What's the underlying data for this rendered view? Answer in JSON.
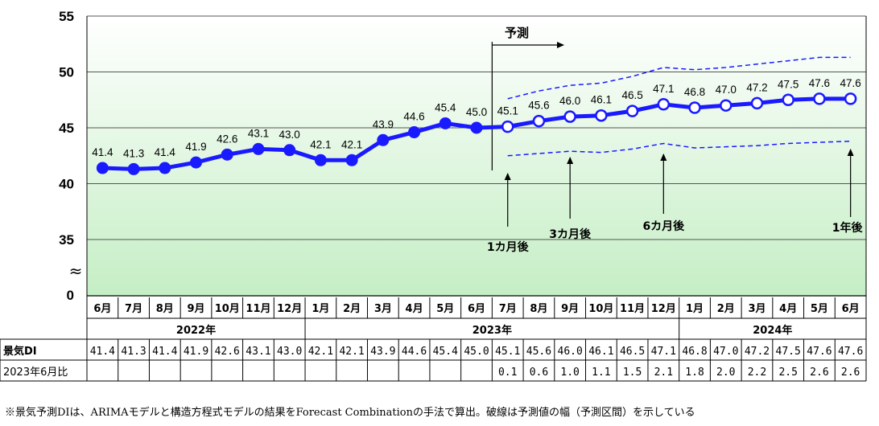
{
  "chart_data": {
    "type": "line",
    "title": "",
    "xlabel": "",
    "ylabel": "",
    "ylim": [
      35,
      55
    ],
    "y_ticks": [
      "35",
      "40",
      "45",
      "50",
      "55"
    ],
    "y_zero_label": "0",
    "axis_break_symbol": "≈",
    "grid": true,
    "categories": [
      "6月",
      "7月",
      "8月",
      "9月",
      "10月",
      "11月",
      "12月",
      "1月",
      "2月",
      "3月",
      "4月",
      "5月",
      "6月",
      "7月",
      "8月",
      "9月",
      "10月",
      "11月",
      "12月",
      "1月",
      "2月",
      "3月",
      "4月",
      "5月",
      "6月"
    ],
    "years": [
      {
        "label": "2022年",
        "start": 0,
        "end": 6
      },
      {
        "label": "2023年",
        "start": 7,
        "end": 18
      },
      {
        "label": "2024年",
        "start": 19,
        "end": 24
      }
    ],
    "series": [
      {
        "name": "景気DI",
        "values": [
          41.4,
          41.3,
          41.4,
          41.9,
          42.6,
          43.1,
          43.0,
          42.1,
          42.1,
          43.9,
          44.6,
          45.4,
          45.0,
          45.1,
          45.6,
          46.0,
          46.1,
          46.5,
          47.1,
          46.8,
          47.0,
          47.2,
          47.5,
          47.6,
          47.6
        ]
      }
    ],
    "point_labels": [
      "41.4",
      "41.3",
      "41.4",
      "41.9",
      "42.6",
      "43.1",
      "43.0",
      "42.1",
      "42.1",
      "43.9",
      "44.6",
      "45.4",
      "45.0",
      "45.1",
      "45.6",
      "46.0",
      "46.1",
      "46.5",
      "47.1",
      "46.8",
      "47.0",
      "47.2",
      "47.5",
      "47.6",
      "47.6"
    ],
    "forecast_start_index": 13,
    "prediction_interval": {
      "upper": {
        "x": [
          13,
          14,
          15,
          16,
          17,
          18,
          19,
          20,
          21,
          22,
          23,
          24
        ],
        "values": [
          47.6,
          48.3,
          48.8,
          49.0,
          49.6,
          50.4,
          50.2,
          50.4,
          50.7,
          51.0,
          51.3,
          51.3
        ]
      },
      "lower": {
        "x": [
          13,
          14,
          15,
          16,
          17,
          18,
          19,
          20,
          21,
          22,
          23,
          24
        ],
        "values": [
          42.5,
          42.7,
          42.9,
          42.8,
          43.1,
          43.6,
          43.2,
          43.3,
          43.4,
          43.6,
          43.7,
          43.8
        ]
      }
    },
    "forecast_label": "予測",
    "annotations": [
      {
        "text": "1カ月後",
        "index": 13
      },
      {
        "text": "3カ月後",
        "index": 15
      },
      {
        "text": "6カ月後",
        "index": 18
      },
      {
        "text": "1年後",
        "index": 24
      }
    ],
    "table": {
      "rows": [
        {
          "label": "景気DI",
          "values": [
            "41.4",
            "41.3",
            "41.4",
            "41.9",
            "42.6",
            "43.1",
            "43.0",
            "42.1",
            "42.1",
            "43.9",
            "44.6",
            "45.4",
            "45.0",
            "45.1",
            "45.6",
            "46.0",
            "46.1",
            "46.5",
            "47.1",
            "46.8",
            "47.0",
            "47.2",
            "47.5",
            "47.6",
            "47.6"
          ]
        },
        {
          "label": "2023年6月比",
          "values": [
            "",
            "",
            "",
            "",
            "",
            "",
            "",
            "",
            "",
            "",
            "",
            "",
            "",
            "0.1",
            "0.6",
            "1.0",
            "1.1",
            "1.5",
            "2.1",
            "1.8",
            "2.0",
            "2.2",
            "2.5",
            "2.6",
            "2.6"
          ]
        }
      ]
    },
    "colors": {
      "line": "#1a1aff",
      "marker_fill": "#ffffff",
      "grid": "#555555",
      "band_top": "#ffffff",
      "band_bottom": "#c5eec5"
    }
  },
  "note": "※景気予測DIは、ARIMAモデルと構造方程式モデルの結果をForecast Combinationの手法で算出。破線は予測値の幅（予測区間）を示している"
}
